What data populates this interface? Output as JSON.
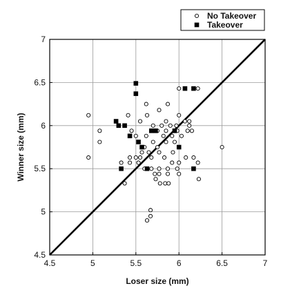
{
  "chart_data": {
    "type": "scatter",
    "title": "",
    "xlabel": "Loser size (mm)",
    "ylabel": "Winner size (mm)",
    "xlim": [
      4.5,
      7
    ],
    "ylim": [
      4.5,
      7
    ],
    "x_ticks": [
      4.5,
      5,
      5.5,
      6,
      6.5,
      7
    ],
    "y_ticks": [
      4.5,
      5,
      5.5,
      6,
      6.5,
      7
    ],
    "x_tick_labels": [
      "4.5",
      "5",
      "5.5",
      "6",
      "6.5",
      "7"
    ],
    "y_tick_labels": [
      "4.5",
      "5",
      "5.5",
      "6",
      "6.5",
      "7"
    ],
    "grid": true,
    "legend_position": "top-right",
    "reference_line": {
      "type": "identity",
      "from": [
        4.5,
        4.5
      ],
      "to": [
        7,
        7
      ]
    },
    "series": [
      {
        "name": "No Takeover",
        "marker": "open-circle",
        "color": "#000000",
        "points": [
          [
            4.95,
            6.12
          ],
          [
            4.95,
            5.63
          ],
          [
            5.08,
            5.94
          ],
          [
            5.08,
            5.81
          ],
          [
            5.33,
            5.57
          ],
          [
            5.37,
            5.33
          ],
          [
            5.41,
            6.12
          ],
          [
            5.43,
            5.63
          ],
          [
            5.43,
            5.57
          ],
          [
            5.45,
            5.94
          ],
          [
            5.5,
            5.88
          ],
          [
            5.5,
            5.63
          ],
          [
            5.53,
            5.57
          ],
          [
            5.55,
            5.63
          ],
          [
            5.55,
            6.05
          ],
          [
            5.57,
            5.69
          ],
          [
            5.6,
            5.75
          ],
          [
            5.6,
            5.5
          ],
          [
            5.62,
            6.25
          ],
          [
            5.62,
            5.88
          ],
          [
            5.63,
            6.12
          ],
          [
            5.63,
            4.9
          ],
          [
            5.65,
            5.69
          ],
          [
            5.67,
            4.95
          ],
          [
            5.67,
            5.02
          ],
          [
            5.68,
            5.63
          ],
          [
            5.68,
            5.5
          ],
          [
            5.7,
            6.0
          ],
          [
            5.7,
            5.81
          ],
          [
            5.72,
            5.44
          ],
          [
            5.73,
            5.38
          ],
          [
            5.75,
            5.94
          ],
          [
            5.75,
            5.75
          ],
          [
            5.77,
            6.18
          ],
          [
            5.77,
            5.69
          ],
          [
            5.77,
            5.5
          ],
          [
            5.77,
            5.44
          ],
          [
            5.78,
            5.33
          ],
          [
            5.8,
            6.0
          ],
          [
            5.82,
            5.88
          ],
          [
            5.83,
            5.63
          ],
          [
            5.84,
            5.33
          ],
          [
            5.85,
            6.05
          ],
          [
            5.85,
            5.94
          ],
          [
            5.85,
            5.81
          ],
          [
            5.87,
            6.25
          ],
          [
            5.87,
            5.5
          ],
          [
            5.87,
            5.44
          ],
          [
            5.88,
            5.33
          ],
          [
            5.9,
            6.0
          ],
          [
            5.92,
            5.88
          ],
          [
            5.92,
            5.57
          ],
          [
            5.93,
            5.69
          ],
          [
            5.95,
            5.81
          ],
          [
            5.97,
            6.0
          ],
          [
            5.98,
            5.94
          ],
          [
            5.98,
            5.5
          ],
          [
            6.0,
            6.43
          ],
          [
            6.0,
            6.12
          ],
          [
            6.0,
            5.57
          ],
          [
            6.0,
            5.44
          ],
          [
            6.03,
            5.88
          ],
          [
            6.07,
            6.05
          ],
          [
            6.08,
            5.63
          ],
          [
            6.1,
            5.94
          ],
          [
            6.12,
            6.05
          ],
          [
            6.12,
            6.0
          ],
          [
            6.15,
            5.94
          ],
          [
            6.17,
            5.63
          ],
          [
            6.22,
            6.43
          ],
          [
            6.22,
            5.57
          ],
          [
            6.23,
            5.38
          ],
          [
            6.5,
            5.75
          ]
        ]
      },
      {
        "name": "Takeover",
        "marker": "filled-square",
        "color": "#000000",
        "points": [
          [
            5.27,
            6.05
          ],
          [
            5.3,
            6.0
          ],
          [
            5.33,
            5.5
          ],
          [
            5.37,
            6.0
          ],
          [
            5.43,
            5.88
          ],
          [
            5.5,
            6.49
          ],
          [
            5.5,
            6.37
          ],
          [
            5.53,
            5.81
          ],
          [
            5.57,
            5.75
          ],
          [
            5.63,
            5.5
          ],
          [
            5.68,
            5.94
          ],
          [
            5.73,
            5.94
          ],
          [
            5.95,
            5.94
          ],
          [
            6.0,
            5.75
          ],
          [
            6.07,
            6.43
          ],
          [
            6.17,
            6.43
          ],
          [
            6.17,
            5.5
          ]
        ]
      }
    ]
  }
}
